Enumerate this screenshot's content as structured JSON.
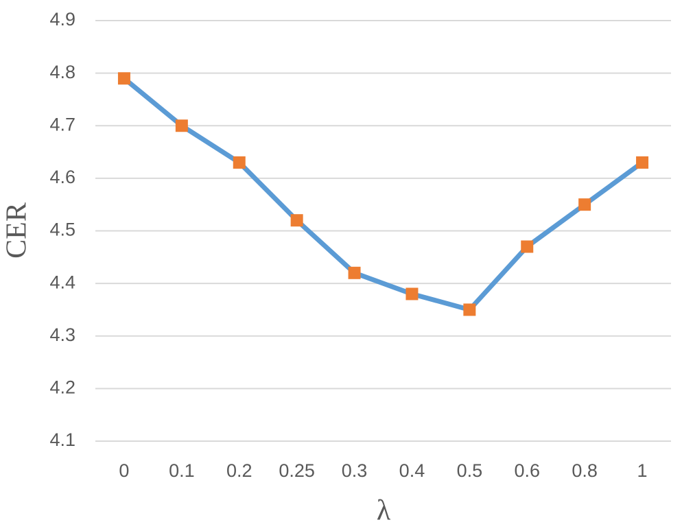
{
  "chart_data": {
    "type": "line",
    "x_label": "λ",
    "y_label": "CER",
    "categories": [
      "0",
      "0.1",
      "0.2",
      "0.25",
      "0.3",
      "0.4",
      "0.5",
      "0.6",
      "0.8",
      "1"
    ],
    "values": [
      4.79,
      4.7,
      4.63,
      4.52,
      4.42,
      4.38,
      4.35,
      4.47,
      4.55,
      4.63
    ],
    "color": "#5b9bd5",
    "marker_color": "#ed7d31",
    "ylim": [
      4.1,
      4.9
    ],
    "yticks": [
      4.1,
      4.2,
      4.3,
      4.4,
      4.5,
      4.6,
      4.7,
      4.8,
      4.9
    ],
    "grid": true
  }
}
